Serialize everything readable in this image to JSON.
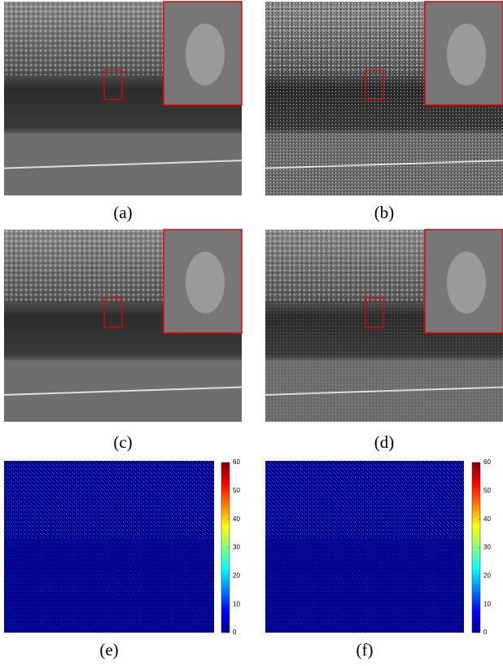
{
  "panels": [
    {
      "caption": "(a)"
    },
    {
      "caption": "(b)"
    },
    {
      "caption": "(c)"
    },
    {
      "caption": "(d)"
    },
    {
      "caption": "(e)"
    },
    {
      "caption": "(f)"
    }
  ],
  "colorbars": [
    {
      "range": [
        0,
        60
      ],
      "ticks": [
        0,
        10,
        20,
        30,
        40,
        50,
        60
      ]
    },
    {
      "range": [
        0,
        60
      ],
      "ticks": [
        0,
        10,
        20,
        30,
        40,
        50,
        60
      ]
    }
  ]
}
